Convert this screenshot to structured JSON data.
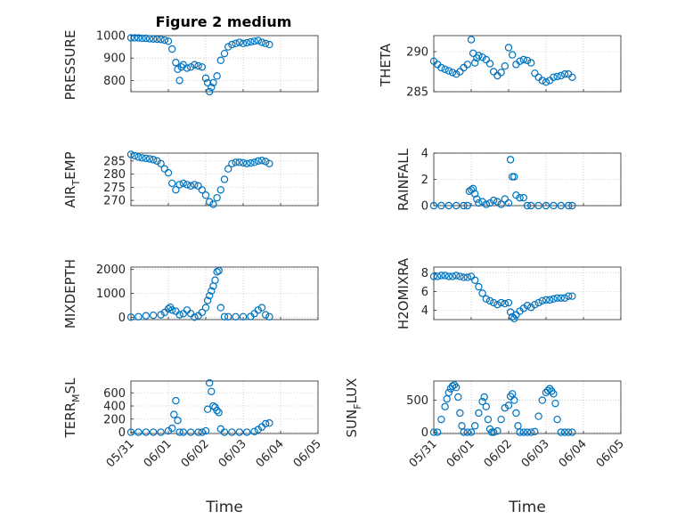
{
  "figure_title": "Figure 2 medium",
  "marker_color": "#0072bd",
  "chart_data": [
    {
      "type": "scatter",
      "ylabel": "PRESSURE",
      "ylim": [
        750,
        1000
      ],
      "yticks": [
        800,
        900,
        1000
      ],
      "xlim": [
        0,
        5
      ],
      "x": [
        0,
        0.1,
        0.2,
        0.3,
        0.4,
        0.5,
        0.6,
        0.7,
        0.8,
        0.9,
        1.0,
        1.1,
        1.2,
        1.25,
        1.3,
        1.35,
        1.4,
        1.5,
        1.6,
        1.7,
        1.8,
        1.9,
        2.0,
        2.05,
        2.1,
        2.15,
        2.2,
        2.3,
        2.4,
        2.5,
        2.6,
        2.7,
        2.8,
        2.9,
        3.0,
        3.1,
        3.2,
        3.3,
        3.4,
        3.5,
        3.6,
        3.7
      ],
      "y": [
        990,
        990,
        990,
        988,
        988,
        986,
        985,
        984,
        983,
        980,
        975,
        940,
        880,
        850,
        800,
        860,
        870,
        855,
        860,
        870,
        865,
        860,
        810,
        790,
        750,
        770,
        790,
        820,
        890,
        920,
        950,
        960,
        965,
        970,
        965,
        968,
        972,
        975,
        978,
        970,
        965,
        960
      ]
    },
    {
      "type": "scatter",
      "ylabel": "THETA",
      "ylim": [
        285,
        292
      ],
      "yticks": [
        285,
        290
      ],
      "xlim": [
        0,
        5
      ],
      "x": [
        0,
        0.1,
        0.2,
        0.3,
        0.4,
        0.5,
        0.6,
        0.7,
        0.8,
        0.9,
        1.0,
        1.05,
        1.1,
        1.15,
        1.2,
        1.3,
        1.4,
        1.5,
        1.6,
        1.7,
        1.8,
        1.9,
        2.0,
        2.1,
        2.2,
        2.3,
        2.4,
        2.5,
        2.6,
        2.7,
        2.8,
        2.9,
        3.0,
        3.1,
        3.2,
        3.3,
        3.4,
        3.5,
        3.6,
        3.7
      ],
      "y": [
        288.8,
        288.4,
        288.0,
        287.8,
        287.6,
        287.4,
        287.2,
        287.5,
        288.0,
        288.4,
        291.5,
        289.8,
        288.6,
        289.2,
        289.5,
        289.3,
        289.0,
        288.5,
        287.5,
        287.0,
        287.4,
        288.2,
        290.5,
        289.6,
        288.4,
        288.8,
        289.0,
        288.9,
        288.6,
        287.3,
        286.8,
        286.4,
        286.2,
        286.4,
        286.8,
        286.9,
        287.0,
        287.2,
        287.2,
        286.8
      ]
    },
    {
      "type": "scatter",
      "ylabel": "AIR_TEMP",
      "ylim": [
        268,
        288
      ],
      "yticks": [
        270,
        275,
        280,
        285
      ],
      "xlim": [
        0,
        5
      ],
      "x": [
        0,
        0.1,
        0.2,
        0.3,
        0.4,
        0.5,
        0.6,
        0.7,
        0.8,
        0.9,
        1.0,
        1.1,
        1.2,
        1.3,
        1.4,
        1.5,
        1.6,
        1.7,
        1.8,
        1.9,
        2.0,
        2.1,
        2.2,
        2.3,
        2.4,
        2.5,
        2.6,
        2.7,
        2.8,
        2.9,
        3.0,
        3.1,
        3.2,
        3.3,
        3.4,
        3.5,
        3.6,
        3.7
      ],
      "y": [
        287.5,
        287.0,
        286.5,
        286.2,
        286.0,
        285.8,
        285.5,
        285.0,
        284.0,
        282.0,
        280.5,
        276.5,
        274.0,
        276.0,
        276.5,
        276.0,
        275.5,
        276.0,
        275.5,
        274.0,
        272.0,
        269.5,
        268.5,
        271.0,
        274.0,
        278.0,
        282.0,
        284.0,
        284.5,
        284.5,
        284.3,
        284.0,
        284.2,
        284.5,
        285.0,
        285.2,
        284.8,
        284.0
      ]
    },
    {
      "type": "scatter",
      "ylabel": "RAINFALL",
      "ylim": [
        0,
        4
      ],
      "yticks": [
        0,
        2,
        4
      ],
      "xlim": [
        0,
        5
      ],
      "x": [
        0,
        0.2,
        0.4,
        0.6,
        0.8,
        0.9,
        0.95,
        1.0,
        1.05,
        1.1,
        1.15,
        1.2,
        1.3,
        1.4,
        1.5,
        1.6,
        1.7,
        1.8,
        1.9,
        2.0,
        2.05,
        2.1,
        2.15,
        2.2,
        2.3,
        2.4,
        2.5,
        2.6,
        2.8,
        3.0,
        3.2,
        3.4,
        3.6,
        3.7
      ],
      "y": [
        0,
        0,
        0,
        0,
        0,
        0,
        1.1,
        1.2,
        1.3,
        0.9,
        0.5,
        0.2,
        0.3,
        0.1,
        0.2,
        0.4,
        0.3,
        0.1,
        0.5,
        0.2,
        3.5,
        2.2,
        2.2,
        0.8,
        0.6,
        0.6,
        0,
        0,
        0,
        0,
        0,
        0,
        0,
        0
      ]
    },
    {
      "type": "scatter",
      "ylabel": "MIXDEPTH",
      "ylim": [
        -100,
        2100
      ],
      "yticks": [
        0,
        1000,
        2000
      ],
      "xlim": [
        0,
        5
      ],
      "x": [
        0,
        0.2,
        0.4,
        0.6,
        0.8,
        0.9,
        1.0,
        1.05,
        1.1,
        1.2,
        1.3,
        1.4,
        1.5,
        1.6,
        1.7,
        1.8,
        1.9,
        2.0,
        2.05,
        2.1,
        2.15,
        2.2,
        2.25,
        2.3,
        2.35,
        2.4,
        2.5,
        2.6,
        2.8,
        3.0,
        3.2,
        3.3,
        3.4,
        3.5,
        3.6,
        3.7
      ],
      "y": [
        0,
        20,
        60,
        80,
        100,
        200,
        350,
        420,
        300,
        250,
        100,
        150,
        300,
        150,
        0,
        60,
        200,
        400,
        700,
        900,
        1100,
        1300,
        1550,
        1900,
        1950,
        400,
        20,
        20,
        20,
        20,
        30,
        150,
        300,
        400,
        100,
        20
      ]
    },
    {
      "type": "scatter",
      "ylabel": "H2OMIXRA",
      "ylim": [
        3,
        8.6
      ],
      "yticks": [
        4,
        6,
        8
      ],
      "xlim": [
        0,
        5
      ],
      "x": [
        0,
        0.1,
        0.2,
        0.3,
        0.4,
        0.5,
        0.6,
        0.7,
        0.8,
        0.9,
        1.0,
        1.1,
        1.2,
        1.3,
        1.4,
        1.5,
        1.6,
        1.7,
        1.8,
        1.9,
        2.0,
        2.05,
        2.1,
        2.15,
        2.2,
        2.3,
        2.4,
        2.5,
        2.6,
        2.7,
        2.8,
        2.9,
        3.0,
        3.1,
        3.2,
        3.3,
        3.4,
        3.5,
        3.6,
        3.7
      ],
      "y": [
        7.6,
        7.6,
        7.7,
        7.7,
        7.6,
        7.6,
        7.7,
        7.6,
        7.5,
        7.5,
        7.6,
        7.2,
        6.5,
        5.8,
        5.2,
        5.0,
        4.8,
        4.6,
        4.8,
        4.7,
        4.8,
        3.8,
        3.3,
        3.1,
        3.5,
        3.9,
        4.2,
        4.5,
        4.3,
        4.6,
        4.8,
        5.0,
        5.1,
        5.1,
        5.2,
        5.3,
        5.3,
        5.3,
        5.5,
        5.5
      ]
    },
    {
      "type": "scatter",
      "ylabel": "TERR_MSL",
      "ylim": [
        -20,
        780
      ],
      "yticks": [
        0,
        200,
        400,
        600
      ],
      "xlim": [
        0,
        5
      ],
      "x": [
        0,
        0.2,
        0.4,
        0.6,
        0.8,
        1.0,
        1.1,
        1.15,
        1.2,
        1.25,
        1.3,
        1.4,
        1.6,
        1.8,
        1.9,
        2.0,
        2.05,
        2.1,
        2.15,
        2.2,
        2.25,
        2.3,
        2.35,
        2.4,
        2.5,
        2.7,
        2.9,
        3.1,
        3.3,
        3.4,
        3.5,
        3.6,
        3.7
      ],
      "y": [
        0,
        0,
        0,
        0,
        0,
        20,
        60,
        270,
        480,
        180,
        0,
        0,
        0,
        0,
        0,
        20,
        350,
        750,
        620,
        400,
        380,
        330,
        300,
        50,
        0,
        0,
        0,
        0,
        10,
        40,
        80,
        130,
        140
      ]
    },
    {
      "type": "scatter",
      "ylabel": "SUN_FLUX",
      "ylim": [
        -20,
        800
      ],
      "yticks": [
        0,
        500
      ],
      "xlim": [
        0,
        5
      ],
      "x": [
        0,
        0.1,
        0.2,
        0.3,
        0.35,
        0.4,
        0.45,
        0.5,
        0.55,
        0.6,
        0.65,
        0.7,
        0.75,
        0.8,
        0.9,
        1.0,
        1.1,
        1.2,
        1.3,
        1.35,
        1.4,
        1.45,
        1.5,
        1.55,
        1.6,
        1.7,
        1.8,
        1.9,
        2.0,
        2.05,
        2.1,
        2.15,
        2.2,
        2.25,
        2.3,
        2.4,
        2.5,
        2.6,
        2.7,
        2.8,
        2.9,
        3.0,
        3.05,
        3.1,
        3.15,
        3.2,
        3.25,
        3.3,
        3.4,
        3.5,
        3.6,
        3.7
      ],
      "y": [
        0,
        0,
        200,
        400,
        520,
        620,
        680,
        720,
        740,
        700,
        550,
        300,
        100,
        0,
        0,
        0,
        100,
        300,
        480,
        550,
        400,
        200,
        50,
        0,
        0,
        20,
        200,
        380,
        420,
        560,
        600,
        500,
        300,
        100,
        0,
        0,
        0,
        0,
        10,
        250,
        500,
        620,
        650,
        680,
        640,
        600,
        450,
        200,
        0,
        0,
        0,
        0
      ]
    }
  ],
  "x_tick_labels": [
    "05/31",
    "06/01",
    "06/02",
    "06/03",
    "06/04",
    "06/05"
  ],
  "x_axis_label": "Time",
  "y_axis_labels": [
    {
      "main": "PRESSURE",
      "sub": "",
      "rest": ""
    },
    {
      "main": "THETA",
      "sub": "",
      "rest": ""
    },
    {
      "main": "AIR",
      "sub": "T",
      "rest": "EMP"
    },
    {
      "main": "RAINFALL",
      "sub": "",
      "rest": ""
    },
    {
      "main": "MIXDEPTH",
      "sub": "",
      "rest": ""
    },
    {
      "main": "H2OMIXRA",
      "sub": "",
      "rest": ""
    },
    {
      "main": "TERR",
      "sub": "M",
      "rest": "SL"
    },
    {
      "main": "SUN",
      "sub": "F",
      "rest": "LUX"
    }
  ]
}
